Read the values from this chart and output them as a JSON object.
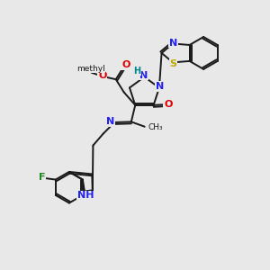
{
  "bg": "#e8e8e8",
  "bc": "#1a1a1a",
  "lw": 1.4,
  "fs": 8.0,
  "colors": {
    "N": "#2222ee",
    "O": "#dd0000",
    "S": "#bbaa00",
    "F": "#228822",
    "H": "#008888",
    "C": "#1a1a1a"
  },
  "xlim": [
    0,
    10
  ],
  "ylim": [
    0,
    10
  ]
}
